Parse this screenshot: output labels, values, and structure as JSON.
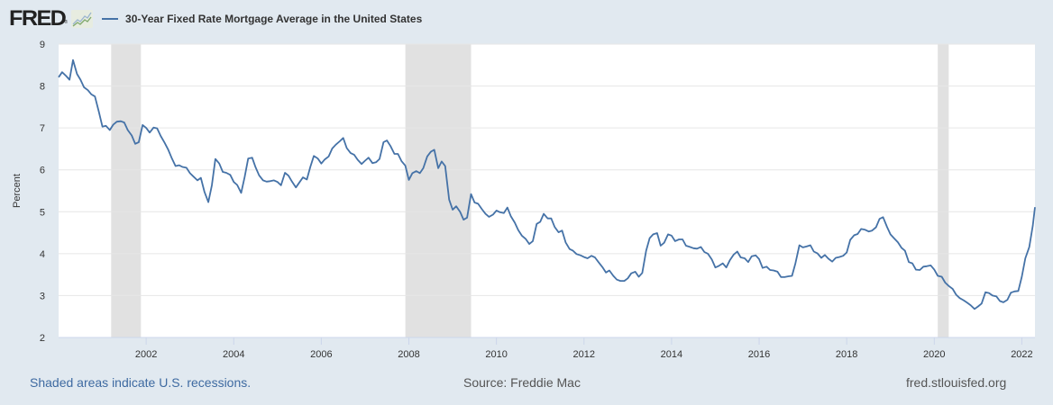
{
  "header": {
    "logo": "FRED",
    "logo_mark": "®",
    "logo_icon": "line-chart-icon",
    "legend_label": "30-Year Fixed Rate Mortgage Average in the United States"
  },
  "footer": {
    "recession_note": "Shaded areas indicate U.S. recessions.",
    "source": "Source: Freddie Mac",
    "site": "fred.stlouisfed.org"
  },
  "colors": {
    "series": "#4572a7",
    "background": "#e1e9f0",
    "plot": "#ffffff",
    "recession": "#e1e1e1",
    "grid": "#e6e6e6"
  },
  "chart_data": {
    "type": "line",
    "title": "30-Year Fixed Rate Mortgage Average in the United States",
    "xlabel": "",
    "ylabel": "Percent",
    "ylim": [
      2,
      9
    ],
    "xlim": [
      2000.0,
      2022.3
    ],
    "yticks": [
      2,
      3,
      4,
      5,
      6,
      7,
      8,
      9
    ],
    "xticks": [
      2002,
      2004,
      2006,
      2008,
      2010,
      2012,
      2014,
      2016,
      2018,
      2020,
      2022
    ],
    "grid": true,
    "legend": "top-left",
    "recessions": [
      [
        2001.2,
        2001.88
      ],
      [
        2007.92,
        2009.42
      ],
      [
        2020.08,
        2020.33
      ]
    ],
    "series": [
      {
        "name": "30-Year Fixed Rate Mortgage Average in the United States",
        "x": [
          2000.0,
          2000.08,
          2000.17,
          2000.25,
          2000.33,
          2000.42,
          2000.5,
          2000.58,
          2000.67,
          2000.75,
          2000.83,
          2000.92,
          2001.0,
          2001.08,
          2001.17,
          2001.25,
          2001.33,
          2001.42,
          2001.5,
          2001.58,
          2001.67,
          2001.75,
          2001.83,
          2001.92,
          2002.0,
          2002.08,
          2002.17,
          2002.25,
          2002.33,
          2002.42,
          2002.5,
          2002.58,
          2002.67,
          2002.75,
          2002.83,
          2002.92,
          2003.0,
          2003.08,
          2003.17,
          2003.25,
          2003.33,
          2003.42,
          2003.5,
          2003.58,
          2003.67,
          2003.75,
          2003.83,
          2003.92,
          2004.0,
          2004.08,
          2004.17,
          2004.25,
          2004.33,
          2004.42,
          2004.5,
          2004.58,
          2004.67,
          2004.75,
          2004.83,
          2004.92,
          2005.0,
          2005.08,
          2005.17,
          2005.25,
          2005.33,
          2005.42,
          2005.5,
          2005.58,
          2005.67,
          2005.75,
          2005.83,
          2005.92,
          2006.0,
          2006.08,
          2006.17,
          2006.25,
          2006.33,
          2006.42,
          2006.5,
          2006.58,
          2006.67,
          2006.75,
          2006.83,
          2006.92,
          2007.0,
          2007.08,
          2007.17,
          2007.25,
          2007.33,
          2007.42,
          2007.5,
          2007.58,
          2007.67,
          2007.75,
          2007.83,
          2007.92,
          2008.0,
          2008.08,
          2008.17,
          2008.25,
          2008.33,
          2008.42,
          2008.5,
          2008.58,
          2008.67,
          2008.75,
          2008.83,
          2008.92,
          2009.0,
          2009.08,
          2009.17,
          2009.25,
          2009.33,
          2009.42,
          2009.5,
          2009.58,
          2009.67,
          2009.75,
          2009.83,
          2009.92,
          2010.0,
          2010.08,
          2010.17,
          2010.25,
          2010.33,
          2010.42,
          2010.5,
          2010.58,
          2010.67,
          2010.75,
          2010.83,
          2010.92,
          2011.0,
          2011.08,
          2011.17,
          2011.25,
          2011.33,
          2011.42,
          2011.5,
          2011.58,
          2011.67,
          2011.75,
          2011.83,
          2011.92,
          2012.0,
          2012.08,
          2012.17,
          2012.25,
          2012.33,
          2012.42,
          2012.5,
          2012.58,
          2012.67,
          2012.75,
          2012.83,
          2012.92,
          2013.0,
          2013.08,
          2013.17,
          2013.25,
          2013.33,
          2013.42,
          2013.5,
          2013.58,
          2013.67,
          2013.75,
          2013.83,
          2013.92,
          2014.0,
          2014.08,
          2014.17,
          2014.25,
          2014.33,
          2014.42,
          2014.5,
          2014.58,
          2014.67,
          2014.75,
          2014.83,
          2014.92,
          2015.0,
          2015.08,
          2015.17,
          2015.25,
          2015.33,
          2015.42,
          2015.5,
          2015.58,
          2015.67,
          2015.75,
          2015.83,
          2015.92,
          2016.0,
          2016.08,
          2016.17,
          2016.25,
          2016.33,
          2016.42,
          2016.5,
          2016.58,
          2016.67,
          2016.75,
          2016.83,
          2016.92,
          2017.0,
          2017.08,
          2017.17,
          2017.25,
          2017.33,
          2017.42,
          2017.5,
          2017.58,
          2017.67,
          2017.75,
          2017.83,
          2017.92,
          2018.0,
          2018.08,
          2018.17,
          2018.25,
          2018.33,
          2018.42,
          2018.5,
          2018.58,
          2018.67,
          2018.75,
          2018.83,
          2018.92,
          2019.0,
          2019.08,
          2019.17,
          2019.25,
          2019.33,
          2019.42,
          2019.5,
          2019.58,
          2019.67,
          2019.75,
          2019.83,
          2019.92,
          2020.0,
          2020.08,
          2020.17,
          2020.25,
          2020.33,
          2020.42,
          2020.5,
          2020.58,
          2020.67,
          2020.75,
          2020.83,
          2020.92,
          2021.0,
          2021.08,
          2021.17,
          2021.25,
          2021.33,
          2021.42,
          2021.5,
          2021.58,
          2021.67,
          2021.75,
          2021.83,
          2021.92,
          2022.0,
          2022.08,
          2022.17,
          2022.25,
          2022.3
        ],
        "values": [
          8.21,
          8.33,
          8.24,
          8.15,
          8.62,
          8.29,
          8.15,
          7.97,
          7.9,
          7.8,
          7.75,
          7.38,
          7.03,
          7.05,
          6.95,
          7.08,
          7.15,
          7.16,
          7.13,
          6.95,
          6.82,
          6.62,
          6.66,
          7.07,
          7.0,
          6.89,
          7.01,
          6.99,
          6.81,
          6.65,
          6.49,
          6.29,
          6.09,
          6.11,
          6.07,
          6.05,
          5.92,
          5.84,
          5.75,
          5.81,
          5.48,
          5.23,
          5.63,
          6.26,
          6.15,
          5.95,
          5.93,
          5.88,
          5.71,
          5.64,
          5.45,
          5.83,
          6.27,
          6.29,
          6.06,
          5.87,
          5.75,
          5.72,
          5.73,
          5.75,
          5.71,
          5.63,
          5.93,
          5.86,
          5.72,
          5.58,
          5.7,
          5.82,
          5.77,
          6.07,
          6.33,
          6.27,
          6.15,
          6.25,
          6.32,
          6.51,
          6.6,
          6.68,
          6.76,
          6.52,
          6.4,
          6.36,
          6.24,
          6.14,
          6.22,
          6.29,
          6.16,
          6.18,
          6.26,
          6.66,
          6.7,
          6.57,
          6.38,
          6.38,
          6.21,
          6.1,
          5.76,
          5.92,
          5.97,
          5.92,
          6.04,
          6.32,
          6.43,
          6.48,
          6.04,
          6.2,
          6.09,
          5.29,
          5.05,
          5.13,
          5.0,
          4.81,
          4.86,
          5.42,
          5.22,
          5.19,
          5.06,
          4.95,
          4.88,
          4.93,
          5.03,
          4.99,
          4.97,
          5.1,
          4.89,
          4.74,
          4.56,
          4.43,
          4.35,
          4.23,
          4.3,
          4.71,
          4.76,
          4.95,
          4.84,
          4.84,
          4.64,
          4.51,
          4.55,
          4.27,
          4.11,
          4.07,
          3.99,
          3.96,
          3.92,
          3.89,
          3.95,
          3.91,
          3.8,
          3.68,
          3.55,
          3.6,
          3.47,
          3.38,
          3.35,
          3.35,
          3.41,
          3.53,
          3.57,
          3.45,
          3.54,
          4.07,
          4.37,
          4.46,
          4.49,
          4.19,
          4.26,
          4.46,
          4.43,
          4.3,
          4.34,
          4.34,
          4.19,
          4.16,
          4.13,
          4.12,
          4.16,
          4.04,
          4.0,
          3.86,
          3.67,
          3.71,
          3.77,
          3.67,
          3.84,
          3.98,
          4.05,
          3.91,
          3.89,
          3.8,
          3.94,
          3.96,
          3.87,
          3.66,
          3.69,
          3.61,
          3.6,
          3.57,
          3.44,
          3.44,
          3.46,
          3.47,
          3.77,
          4.2,
          4.15,
          4.17,
          4.2,
          4.05,
          4.01,
          3.9,
          3.97,
          3.88,
          3.81,
          3.9,
          3.92,
          3.95,
          4.03,
          4.33,
          4.44,
          4.47,
          4.59,
          4.57,
          4.53,
          4.55,
          4.63,
          4.83,
          4.87,
          4.64,
          4.46,
          4.37,
          4.27,
          4.14,
          4.07,
          3.8,
          3.77,
          3.62,
          3.61,
          3.69,
          3.7,
          3.72,
          3.62,
          3.47,
          3.45,
          3.31,
          3.23,
          3.16,
          3.02,
          2.94,
          2.89,
          2.83,
          2.77,
          2.68,
          2.74,
          2.81,
          3.08,
          3.06,
          3.0,
          2.98,
          2.87,
          2.84,
          2.9,
          3.07,
          3.1,
          3.11,
          3.45,
          3.89,
          4.16,
          4.67,
          5.11
        ]
      }
    ]
  }
}
